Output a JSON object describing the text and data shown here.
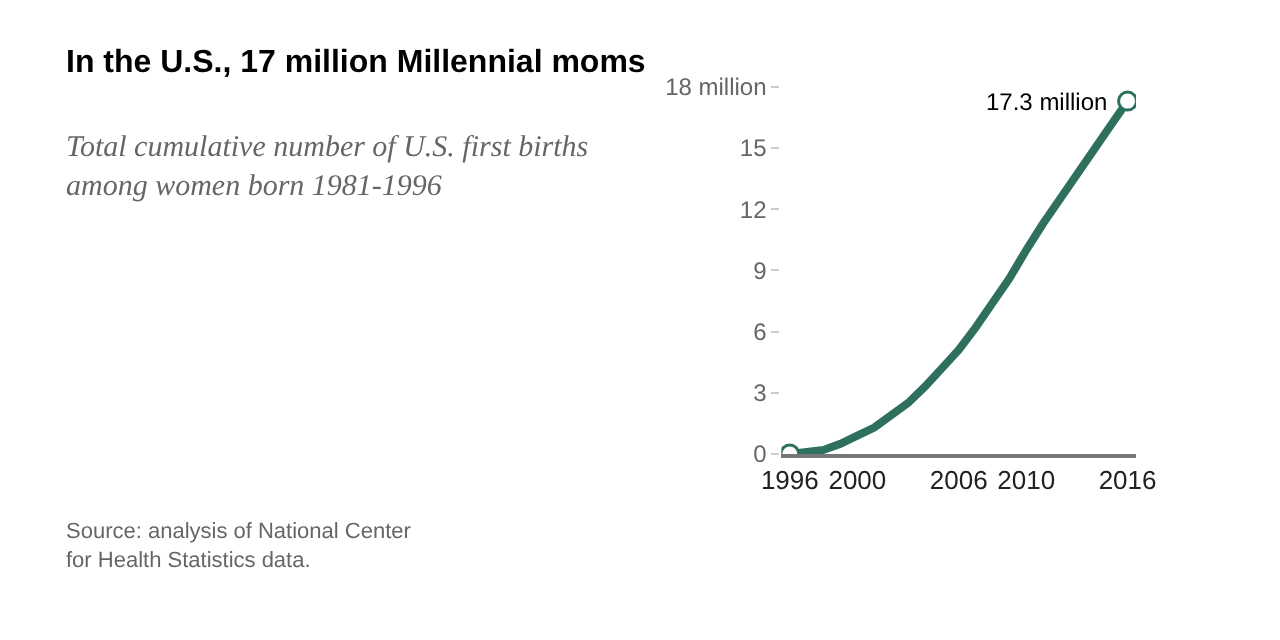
{
  "chart_data": {
    "type": "line",
    "title": "In the U.S., 17 million Millennial moms",
    "subtitle": "Total cumulative number of U.S. first births among women born 1981-1996",
    "x": [
      1996,
      1997,
      1998,
      1999,
      2000,
      2001,
      2002,
      2003,
      2004,
      2005,
      2006,
      2007,
      2008,
      2009,
      2010,
      2011,
      2012,
      2013,
      2014,
      2015,
      2016
    ],
    "series": [
      {
        "color": "#2f6f5e",
        "values": [
          0,
          0.1,
          0.2,
          0.5,
          0.9,
          1.3,
          1.9,
          2.5,
          3.3,
          4.2,
          5.1,
          6.2,
          7.4,
          8.6,
          10.0,
          11.3,
          12.5,
          13.7,
          14.9,
          16.1,
          17.3
        ]
      }
    ],
    "xlim": [
      1995.5,
      2016.5
    ],
    "xticks": [
      1996,
      2000,
      2006,
      2010,
      2016
    ],
    "ylim": [
      0,
      18
    ],
    "yticks": [
      0,
      3,
      6,
      9,
      12,
      15,
      {
        "value": 18,
        "label": "18 million"
      }
    ],
    "annotations": [
      {
        "text": "17.3 million",
        "x": 2016,
        "y": 17.3
      },
      "Source: analysis of National Center for Health Statistics data."
    ],
    "line_style": "solid"
  }
}
